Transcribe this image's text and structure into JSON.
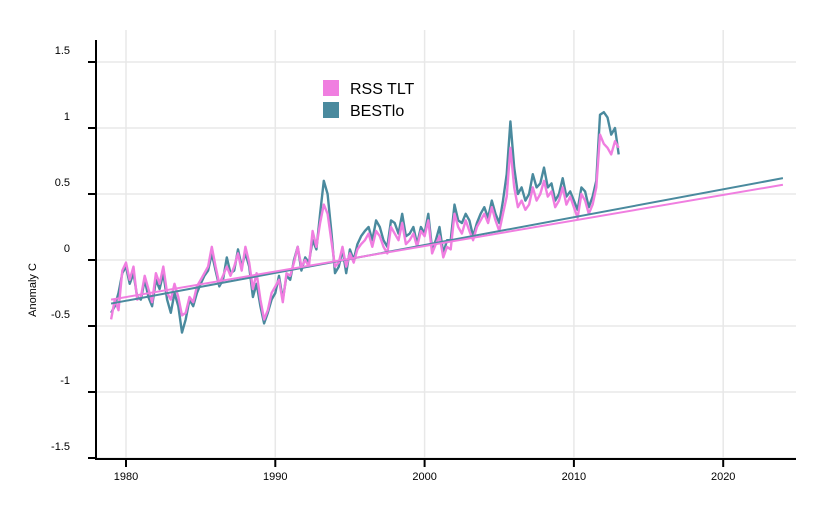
{
  "chart_data": {
    "type": "line",
    "title": "",
    "xlabel": "",
    "ylabel": "Anomaly C",
    "xlim": [
      1977.8,
      2024.8
    ],
    "ylim": [
      -1.52,
      1.62
    ],
    "grid": true,
    "legend_position": "top-center",
    "x_ticks": [
      1980,
      1990,
      2000,
      2010,
      2020
    ],
    "x_tick_labels": [
      "1980",
      "1990",
      "2000",
      "2010",
      "2020"
    ],
    "y_ticks": [
      1.5,
      1,
      0.5,
      0,
      -0.5,
      -1,
      -1.5
    ],
    "y_tick_labels": [
      "1.5",
      "1",
      "0.5",
      "0",
      "-0.5",
      "-1",
      "-1.5"
    ],
    "colors": {
      "rss": "#f07ee0",
      "best": "#4a8a9e",
      "grid": "#e8e8e8",
      "axis": "#000000"
    },
    "series": [
      {
        "name": "RSS TLT",
        "key": "rss",
        "x_start": 1979.0,
        "x_step": 0.25,
        "values": [
          -0.45,
          -0.3,
          -0.38,
          -0.08,
          -0.02,
          -0.15,
          -0.05,
          -0.3,
          -0.28,
          -0.12,
          -0.22,
          -0.32,
          -0.1,
          -0.18,
          -0.05,
          -0.25,
          -0.3,
          -0.18,
          -0.28,
          -0.42,
          -0.4,
          -0.28,
          -0.32,
          -0.2,
          -0.15,
          -0.1,
          -0.05,
          0.1,
          -0.05,
          -0.18,
          -0.12,
          -0.05,
          -0.12,
          -0.05,
          0.05,
          -0.08,
          0.1,
          -0.02,
          -0.22,
          -0.1,
          -0.3,
          -0.45,
          -0.38,
          -0.25,
          -0.2,
          -0.15,
          -0.32,
          -0.1,
          -0.12,
          -0.02,
          0.1,
          -0.05,
          0.0,
          -0.05,
          0.22,
          0.1,
          0.28,
          0.42,
          0.35,
          0.15,
          -0.05,
          -0.02,
          0.1,
          -0.05,
          0.05,
          -0.02,
          0.08,
          0.12,
          0.15,
          0.2,
          0.1,
          0.22,
          0.18,
          0.1,
          0.05,
          0.25,
          0.2,
          0.15,
          0.28,
          0.12,
          0.15,
          0.2,
          0.1,
          0.22,
          0.18,
          0.3,
          0.05,
          0.12,
          0.18,
          0.02,
          0.1,
          0.08,
          0.35,
          0.25,
          0.2,
          0.3,
          0.22,
          0.15,
          0.25,
          0.3,
          0.35,
          0.28,
          0.4,
          0.3,
          0.22,
          0.35,
          0.48,
          0.85,
          0.55,
          0.4,
          0.45,
          0.38,
          0.42,
          0.55,
          0.45,
          0.5,
          0.6,
          0.48,
          0.52,
          0.4,
          0.45,
          0.55,
          0.42,
          0.48,
          0.4,
          0.32,
          0.5,
          0.45,
          0.35,
          0.42,
          0.55,
          0.95,
          0.88,
          0.85,
          0.8,
          0.9,
          0.85
        ]
      },
      {
        "name": "BESTlo",
        "key": "best",
        "x_start": 1979.0,
        "x_step": 0.25,
        "values": [
          -0.4,
          -0.35,
          -0.25,
          -0.1,
          -0.05,
          -0.18,
          -0.1,
          -0.28,
          -0.3,
          -0.15,
          -0.28,
          -0.35,
          -0.15,
          -0.22,
          -0.1,
          -0.3,
          -0.4,
          -0.25,
          -0.35,
          -0.55,
          -0.45,
          -0.3,
          -0.35,
          -0.25,
          -0.18,
          -0.12,
          -0.08,
          0.05,
          -0.08,
          -0.2,
          -0.15,
          0.02,
          -0.1,
          -0.08,
          0.08,
          -0.05,
          0.05,
          -0.05,
          -0.28,
          -0.18,
          -0.35,
          -0.48,
          -0.4,
          -0.3,
          -0.25,
          -0.12,
          -0.3,
          -0.12,
          -0.15,
          0.0,
          0.1,
          -0.08,
          0.02,
          -0.02,
          0.15,
          0.08,
          0.35,
          0.6,
          0.5,
          0.22,
          -0.1,
          -0.05,
          0.08,
          -0.1,
          0.08,
          0.0,
          0.12,
          0.18,
          0.22,
          0.25,
          0.15,
          0.3,
          0.25,
          0.15,
          0.1,
          0.3,
          0.28,
          0.2,
          0.35,
          0.18,
          0.2,
          0.25,
          0.12,
          0.25,
          0.2,
          0.35,
          0.08,
          0.15,
          0.25,
          0.05,
          0.15,
          0.15,
          0.42,
          0.3,
          0.28,
          0.35,
          0.3,
          0.18,
          0.28,
          0.35,
          0.4,
          0.32,
          0.45,
          0.35,
          0.28,
          0.45,
          0.65,
          1.05,
          0.7,
          0.5,
          0.55,
          0.45,
          0.5,
          0.65,
          0.55,
          0.58,
          0.7,
          0.55,
          0.58,
          0.45,
          0.5,
          0.62,
          0.48,
          0.52,
          0.45,
          0.38,
          0.55,
          0.52,
          0.4,
          0.48,
          0.6,
          1.1,
          1.12,
          1.08,
          0.95,
          1.0,
          0.8
        ]
      }
    ],
    "trend_lines": [
      {
        "series": "RSS TLT",
        "key": "rss",
        "x": [
          1979.0,
          2024.0
        ],
        "y": [
          -0.3,
          0.57
        ]
      },
      {
        "series": "BESTlo",
        "key": "best",
        "x": [
          1979.0,
          2024.0
        ],
        "y": [
          -0.33,
          0.62
        ]
      }
    ],
    "legend": [
      {
        "label": "RSS TLT",
        "key": "rss"
      },
      {
        "label": "BESTlo",
        "key": "best"
      }
    ]
  }
}
